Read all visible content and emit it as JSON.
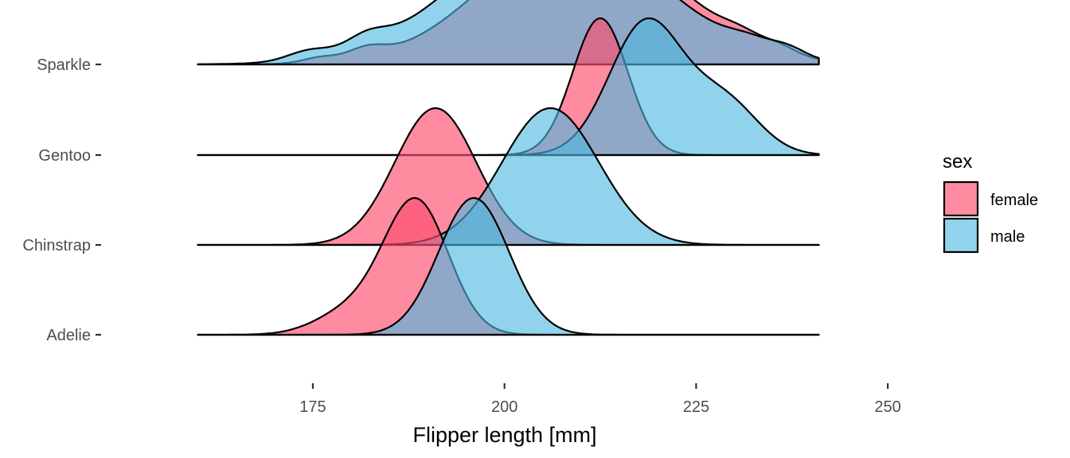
{
  "chart_data": {
    "type": "area",
    "subtype": "ridgeline-density",
    "title": "",
    "xlabel": "Flipper length [mm]",
    "ylabel": "",
    "xlim": [
      160,
      241
    ],
    "x_axis_range": [
      148,
      253
    ],
    "x_ticks": [
      175,
      200,
      225,
      250
    ],
    "categories": [
      "Adelie",
      "Chinstrap",
      "Gentoo",
      "Sparkle"
    ],
    "grid": false,
    "legend": {
      "title": "sex",
      "position": "right",
      "entries": [
        {
          "label": "female",
          "color": "#FF4D6D"
        },
        {
          "label": "male",
          "color": "#4DB8E0"
        }
      ]
    },
    "series": [
      {
        "name": "female",
        "color": "#FF4D6D",
        "opacity": 0.65,
        "groups": {
          "Adelie": [
            {
              "mean": 188.5,
              "sd": 4.2,
              "weight": 0.85
            },
            {
              "mean": 180.0,
              "sd": 4.5,
              "weight": 0.15
            }
          ],
          "Chinstrap": [
            {
              "mean": 191.0,
              "sd": 5.3,
              "weight": 1.0
            }
          ],
          "Gentoo": [
            {
              "mean": 212.5,
              "sd": 3.6,
              "weight": 1.0
            }
          ],
          "Sparkle": [
            {
              "mean": 176.0,
              "sd": 2.2,
              "weight": 0.03
            },
            {
              "mean": 182.0,
              "sd": 2.4,
              "weight": 0.06
            },
            {
              "mean": 210.0,
              "sd": 12.0,
              "weight": 0.82
            },
            {
              "mean": 236.0,
              "sd": 2.2,
              "weight": 0.04
            },
            {
              "mean": 231.0,
              "sd": 2.6,
              "weight": 0.05
            }
          ]
        }
      },
      {
        "name": "male",
        "color": "#4DB8E0",
        "opacity": 0.62,
        "groups": {
          "Adelie": [
            {
              "mean": 196.0,
              "sd": 4.6,
              "weight": 1.0
            }
          ],
          "Chinstrap": [
            {
              "mean": 206.0,
              "sd": 6.3,
              "weight": 1.0
            }
          ],
          "Gentoo": [
            {
              "mean": 218.5,
              "sd": 4.8,
              "weight": 0.72
            },
            {
              "mean": 228.8,
              "sd": 4.4,
              "weight": 0.28
            }
          ],
          "Sparkle": [
            {
              "mean": 174.5,
              "sd": 2.8,
              "weight": 0.05
            },
            {
              "mean": 182.0,
              "sd": 2.6,
              "weight": 0.07
            },
            {
              "mean": 207.0,
              "sd": 13.0,
              "weight": 0.78
            },
            {
              "mean": 232.0,
              "sd": 2.8,
              "weight": 0.05
            },
            {
              "mean": 237.0,
              "sd": 2.3,
              "weight": 0.05
            }
          ]
        }
      }
    ]
  }
}
